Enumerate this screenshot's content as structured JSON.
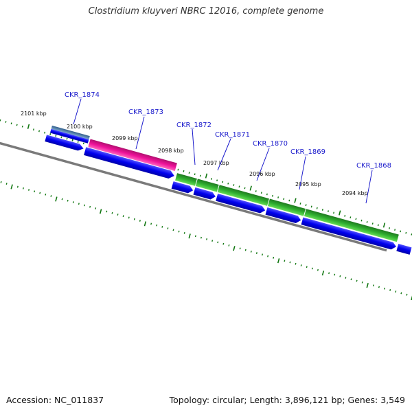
{
  "title": "Clostridium kluyveri NBRC 12016, complete genome",
  "footer": {
    "accession": "Accession: NC_011837",
    "summary": "Topology: circular; Length: 3,896,121 bp; Genes: 3,549"
  },
  "ruler": [
    {
      "label": "2101 kbp",
      "pos": 2101
    },
    {
      "label": "2100 kbp",
      "pos": 2100
    },
    {
      "label": "2099 kbp",
      "pos": 2099
    },
    {
      "label": "2098 kbp",
      "pos": 2098
    },
    {
      "label": "2097 kbp",
      "pos": 2097
    },
    {
      "label": "2096 kbp",
      "pos": 2096
    },
    {
      "label": "2095 kbp",
      "pos": 2095
    },
    {
      "label": "2094 kbp",
      "pos": 2094
    }
  ],
  "genes": [
    {
      "label": "CKR_1874"
    },
    {
      "label": "CKR_1873"
    },
    {
      "label": "CKR_1872"
    },
    {
      "label": "CKR_1871"
    },
    {
      "label": "CKR_1870"
    },
    {
      "label": "CKR_1869"
    },
    {
      "label": "CKR_1868"
    }
  ],
  "colors": {
    "cds": "#0000ee",
    "gene_pink": "#ee1199",
    "gene_green": "#33bb33",
    "gene_steel": "#4477aa",
    "gene_red": "#ee0000",
    "ruler_tick": "#117711",
    "backbone": "#777777",
    "label": "#1a1acc"
  }
}
